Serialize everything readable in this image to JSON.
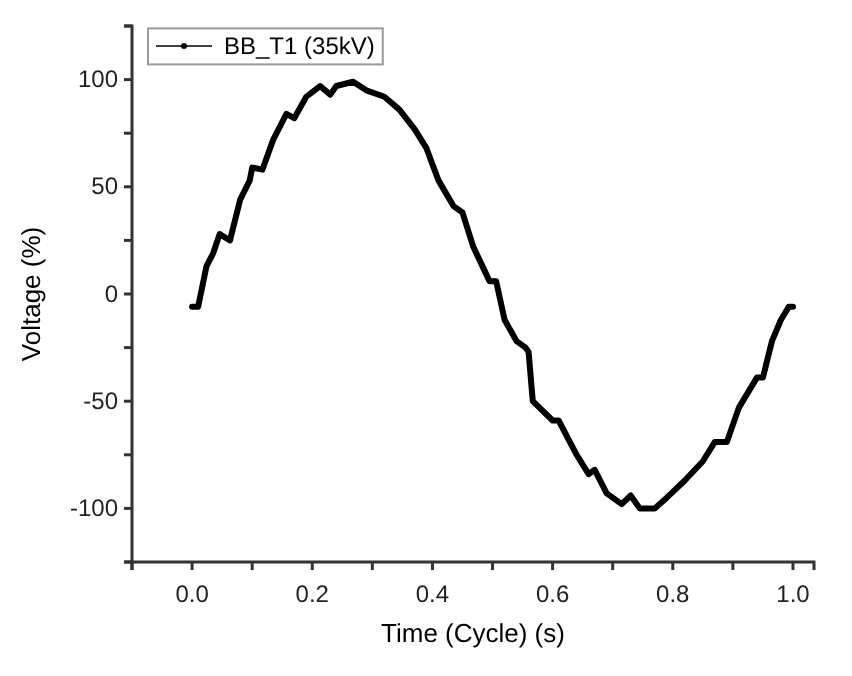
{
  "chart_data": {
    "type": "line",
    "xlabel": "Time (Cycle) (s)",
    "ylabel": "Voltage (%)",
    "xlim": [
      -0.1,
      1.035
    ],
    "ylim": [
      -125,
      125
    ],
    "xticks": [
      {
        "value": -0.1,
        "label": null
      },
      {
        "value": 0,
        "label": "0.0"
      },
      {
        "value": 0.1,
        "label": null
      },
      {
        "value": 0.2,
        "label": "0.2"
      },
      {
        "value": 0.3,
        "label": null
      },
      {
        "value": 0.4,
        "label": "0.4"
      },
      {
        "value": 0.5,
        "label": null
      },
      {
        "value": 0.6,
        "label": "0.6"
      },
      {
        "value": 0.7,
        "label": null
      },
      {
        "value": 0.8,
        "label": "0.8"
      },
      {
        "value": 0.9,
        "label": null
      },
      {
        "value": 1,
        "label": "1.0"
      }
    ],
    "yticks": [
      {
        "value": -125,
        "label": null
      },
      -100,
      {
        "value": -75,
        "label": null
      },
      -50,
      {
        "value": -25,
        "label": null
      },
      0,
      {
        "value": 25,
        "label": null
      },
      50,
      {
        "value": 75,
        "label": null
      },
      100,
      {
        "value": 125,
        "label": null
      }
    ],
    "legend": "top left",
    "grid": false,
    "series": [
      {
        "name": "BB_T1 (35kV)",
        "color": "#000000",
        "x": [
          0,
          0.01,
          0.024,
          0.035,
          0.046,
          0.057,
          0.063,
          0.08,
          0.096,
          0.1,
          0.117,
          0.135,
          0.157,
          0.17,
          0.19,
          0.213,
          0.23,
          0.24,
          0.268,
          0.29,
          0.32,
          0.345,
          0.37,
          0.39,
          0.41,
          0.435,
          0.45,
          0.468,
          0.495,
          0.506,
          0.52,
          0.54,
          0.555,
          0.56,
          0.567,
          0.6,
          0.61,
          0.64,
          0.66,
          0.67,
          0.69,
          0.715,
          0.73,
          0.745,
          0.77,
          0.79,
          0.82,
          0.85,
          0.87,
          0.89,
          0.91,
          0.94,
          0.95,
          0.965,
          0.98,
          0.993,
          1.0
        ],
        "values": [
          -6,
          -6,
          13,
          19,
          28,
          26,
          25,
          44,
          53,
          59,
          58,
          72,
          84,
          82,
          92,
          97,
          93,
          97,
          99,
          95,
          92,
          86,
          77,
          68,
          53,
          41,
          38,
          22,
          6,
          6,
          -12,
          -22,
          -25,
          -27,
          -50,
          -59,
          -59,
          -75,
          -84,
          -82,
          -93,
          -98,
          -94,
          -100,
          -100,
          -95,
          -87,
          -78,
          -69,
          -69,
          -53,
          -39,
          -39,
          -22,
          -12,
          -6,
          -6
        ]
      }
    ]
  }
}
